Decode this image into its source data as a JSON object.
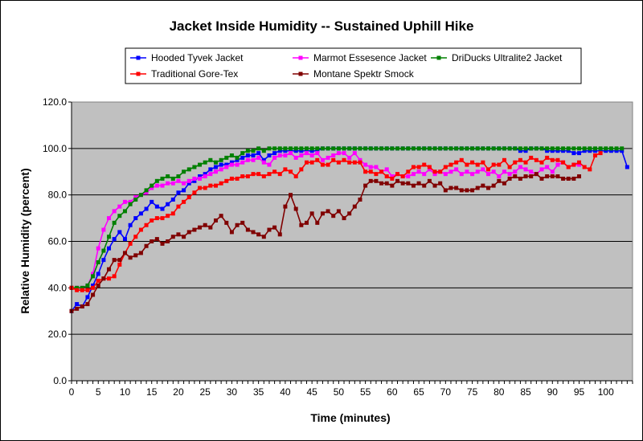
{
  "chart_data": {
    "type": "line",
    "title": "Jacket Inside Humidity -- Sustained Uphill Hike",
    "xlabel": "Time (minutes)",
    "ylabel": "Relative Humidity (percent)",
    "xlim": [
      0,
      105
    ],
    "ylim": [
      0,
      120
    ],
    "x_ticks": [
      "0",
      "5",
      "10",
      "15",
      "20",
      "25",
      "30",
      "35",
      "40",
      "45",
      "50",
      "55",
      "60",
      "65",
      "70",
      "75",
      "80",
      "85",
      "90",
      "95",
      "100"
    ],
    "y_ticks": [
      "0.0",
      "20.0",
      "40.0",
      "60.0",
      "80.0",
      "100.0",
      "120.0"
    ],
    "grid": "horizontal",
    "plot_background": "#c0c0c0",
    "legend_position": "top",
    "series": [
      {
        "name": "Hooded Tyvek Jacket",
        "color": "#0000ff",
        "marker": "square",
        "x": [
          0,
          1,
          2,
          3,
          4,
          5,
          6,
          7,
          8,
          9,
          10,
          11,
          12,
          13,
          14,
          15,
          16,
          17,
          18,
          19,
          20,
          21,
          22,
          23,
          24,
          25,
          26,
          27,
          28,
          29,
          30,
          31,
          32,
          33,
          34,
          35,
          36,
          37,
          38,
          39,
          40,
          41,
          42,
          43,
          44,
          45,
          46,
          47,
          48,
          49,
          50,
          51,
          52,
          53,
          54,
          55,
          56,
          57,
          58,
          59,
          60,
          61,
          62,
          63,
          64,
          65,
          66,
          67,
          68,
          69,
          70,
          71,
          72,
          73,
          74,
          75,
          76,
          77,
          78,
          79,
          80,
          81,
          82,
          83,
          84,
          85,
          86,
          87,
          88,
          89,
          90,
          91,
          92,
          93,
          94,
          95,
          96,
          97,
          98,
          99,
          100,
          101,
          102,
          103,
          104
        ],
        "y": [
          30,
          33,
          32,
          36,
          41,
          46,
          52,
          57,
          61,
          64,
          61,
          67,
          70,
          72,
          74,
          77,
          75,
          74,
          76,
          78,
          81,
          82,
          85,
          86,
          88,
          89,
          91,
          92,
          93,
          93,
          94,
          95,
          96,
          97,
          97,
          98,
          95,
          97,
          98,
          99,
          99,
          99,
          99,
          99,
          99,
          99,
          99,
          100,
          100,
          100,
          100,
          100,
          100,
          100,
          100,
          100,
          100,
          100,
          100,
          100,
          100,
          100,
          100,
          100,
          100,
          100,
          100,
          100,
          100,
          100,
          100,
          100,
          100,
          100,
          100,
          100,
          100,
          100,
          100,
          100,
          100,
          100,
          100,
          100,
          99,
          99,
          100,
          100,
          100,
          99,
          99,
          99,
          99,
          99,
          98,
          98,
          99,
          99,
          99,
          99,
          99,
          99,
          99,
          99,
          92
        ]
      },
      {
        "name": "Marmot Essesence Jacket",
        "color": "#ff00ff",
        "marker": "square",
        "x": [
          0,
          1,
          2,
          3,
          4,
          5,
          6,
          7,
          8,
          9,
          10,
          11,
          12,
          13,
          14,
          15,
          16,
          17,
          18,
          19,
          20,
          21,
          22,
          23,
          24,
          25,
          26,
          27,
          28,
          29,
          30,
          31,
          32,
          33,
          34,
          35,
          36,
          37,
          38,
          39,
          40,
          41,
          42,
          43,
          44,
          45,
          46,
          47,
          48,
          49,
          50,
          51,
          52,
          53,
          54,
          55,
          56,
          57,
          58,
          59,
          60,
          61,
          62,
          63,
          64,
          65,
          66,
          67,
          68,
          69,
          70,
          71,
          72,
          73,
          74,
          75,
          76,
          77,
          78,
          79,
          80,
          81,
          82,
          83,
          84,
          85,
          86,
          87,
          88,
          89,
          90,
          91,
          92,
          93,
          94,
          95
        ],
        "y": [
          40,
          40,
          40,
          41,
          46,
          57,
          65,
          70,
          73,
          75,
          77,
          77,
          79,
          80,
          81,
          83,
          84,
          84,
          85,
          85,
          86,
          85,
          86,
          87,
          87,
          88,
          89,
          90,
          91,
          92,
          93,
          93,
          94,
          95,
          95,
          96,
          94,
          93,
          96,
          97,
          97,
          98,
          96,
          97,
          98,
          97,
          98,
          95,
          96,
          97,
          98,
          98,
          96,
          98,
          95,
          93,
          92,
          92,
          90,
          91,
          88,
          89,
          88,
          88,
          89,
          90,
          89,
          91,
          89,
          90,
          89,
          90,
          91,
          89,
          90,
          89,
          90,
          91,
          89,
          90,
          88,
          90,
          89,
          90,
          92,
          91,
          90,
          89,
          91,
          92,
          90,
          93,
          94,
          92,
          93,
          93
        ]
      },
      {
        "name": "DriDucks Ultralite2 Jacket",
        "color": "#008000",
        "marker": "square",
        "x": [
          0,
          1,
          2,
          3,
          4,
          5,
          6,
          7,
          8,
          9,
          10,
          11,
          12,
          13,
          14,
          15,
          16,
          17,
          18,
          19,
          20,
          21,
          22,
          23,
          24,
          25,
          26,
          27,
          28,
          29,
          30,
          31,
          32,
          33,
          34,
          35,
          36,
          37,
          38,
          39,
          40,
          41,
          42,
          43,
          44,
          45,
          46,
          47,
          48,
          49,
          50,
          51,
          52,
          53,
          54,
          55,
          56,
          57,
          58,
          59,
          60,
          61,
          62,
          63,
          64,
          65,
          66,
          67,
          68,
          69,
          70,
          71,
          72,
          73,
          74,
          75,
          76,
          77,
          78,
          79,
          80,
          81,
          82,
          83,
          84,
          85,
          86,
          87,
          88,
          89,
          90,
          91,
          92,
          93,
          94,
          95,
          96,
          97,
          98,
          99,
          100,
          101,
          102,
          103
        ],
        "y": [
          40,
          40,
          40,
          41,
          45,
          51,
          56,
          62,
          68,
          71,
          73,
          76,
          78,
          80,
          82,
          84,
          86,
          87,
          88,
          87,
          88,
          90,
          91,
          92,
          93,
          94,
          95,
          94,
          95,
          96,
          97,
          96,
          98,
          99,
          99,
          100,
          99,
          100,
          100,
          100,
          100,
          100,
          100,
          100,
          100,
          100,
          100,
          100,
          100,
          100,
          100,
          100,
          100,
          100,
          100,
          100,
          100,
          100,
          100,
          100,
          100,
          100,
          100,
          100,
          100,
          100,
          100,
          100,
          100,
          100,
          100,
          100,
          100,
          100,
          100,
          100,
          100,
          100,
          100,
          100,
          100,
          100,
          100,
          100,
          100,
          100,
          100,
          100,
          100,
          100,
          100,
          100,
          100,
          100,
          100,
          100,
          100,
          100,
          100,
          100,
          100,
          100,
          100,
          100
        ]
      },
      {
        "name": "Traditional Gore-Tex",
        "color": "#ff0000",
        "marker": "square",
        "x": [
          0,
          1,
          2,
          3,
          4,
          5,
          6,
          7,
          8,
          9,
          10,
          11,
          12,
          13,
          14,
          15,
          16,
          17,
          18,
          19,
          20,
          21,
          22,
          23,
          24,
          25,
          26,
          27,
          28,
          29,
          30,
          31,
          32,
          33,
          34,
          35,
          36,
          37,
          38,
          39,
          40,
          41,
          42,
          43,
          44,
          45,
          46,
          47,
          48,
          49,
          50,
          51,
          52,
          53,
          54,
          55,
          56,
          57,
          58,
          59,
          60,
          61,
          62,
          63,
          64,
          65,
          66,
          67,
          68,
          69,
          70,
          71,
          72,
          73,
          74,
          75,
          76,
          77,
          78,
          79,
          80,
          81,
          82,
          83,
          84,
          85,
          86,
          87,
          88,
          89,
          90,
          91,
          92,
          93,
          94,
          95,
          96,
          97,
          98,
          99
        ],
        "y": [
          40,
          39,
          39,
          39,
          40,
          43,
          44,
          44,
          45,
          50,
          55,
          59,
          62,
          65,
          67,
          69,
          70,
          70,
          71,
          72,
          75,
          77,
          79,
          81,
          83,
          83,
          84,
          84,
          85,
          86,
          87,
          87,
          88,
          88,
          89,
          89,
          88,
          89,
          90,
          89,
          91,
          90,
          88,
          91,
          94,
          94,
          95,
          93,
          93,
          95,
          94,
          95,
          94,
          94,
          94,
          90,
          90,
          89,
          90,
          88,
          87,
          89,
          88,
          90,
          92,
          92,
          93,
          92,
          90,
          90,
          92,
          93,
          94,
          95,
          93,
          94,
          93,
          94,
          91,
          93,
          93,
          95,
          92,
          94,
          95,
          94,
          96,
          95,
          94,
          96,
          95,
          95,
          94,
          92,
          93,
          94,
          92,
          91,
          97,
          98
        ]
      },
      {
        "name": "Montane Spektr Smock",
        "color": "#800000",
        "marker": "square",
        "x": [
          0,
          1,
          2,
          3,
          4,
          5,
          6,
          7,
          8,
          9,
          10,
          11,
          12,
          13,
          14,
          15,
          16,
          17,
          18,
          19,
          20,
          21,
          22,
          23,
          24,
          25,
          26,
          27,
          28,
          29,
          30,
          31,
          32,
          33,
          34,
          35,
          36,
          37,
          38,
          39,
          40,
          41,
          42,
          43,
          44,
          45,
          46,
          47,
          48,
          49,
          50,
          51,
          52,
          53,
          54,
          55,
          56,
          57,
          58,
          59,
          60,
          61,
          62,
          63,
          64,
          65,
          66,
          67,
          68,
          69,
          70,
          71,
          72,
          73,
          74,
          75,
          76,
          77,
          78,
          79,
          80,
          81,
          82,
          83,
          84,
          85,
          86,
          87,
          88,
          89,
          90,
          91,
          92,
          93,
          94,
          95
        ],
        "y": [
          30,
          31,
          32,
          33,
          37,
          41,
          44,
          48,
          52,
          52,
          55,
          53,
          54,
          55,
          58,
          60,
          61,
          59,
          60,
          62,
          63,
          62,
          64,
          65,
          66,
          67,
          66,
          69,
          71,
          68,
          64,
          67,
          68,
          65,
          64,
          63,
          62,
          65,
          66,
          63,
          75,
          80,
          74,
          67,
          68,
          72,
          68,
          72,
          73,
          71,
          73,
          70,
          72,
          75,
          78,
          84,
          86,
          86,
          85,
          85,
          84,
          86,
          85,
          85,
          84,
          85,
          84,
          86,
          84,
          85,
          82,
          83,
          83,
          82,
          82,
          82,
          83,
          84,
          83,
          84,
          86,
          85,
          87,
          88,
          87,
          88,
          88,
          89,
          87,
          88,
          88,
          88,
          87,
          87,
          87,
          88
        ]
      }
    ]
  }
}
